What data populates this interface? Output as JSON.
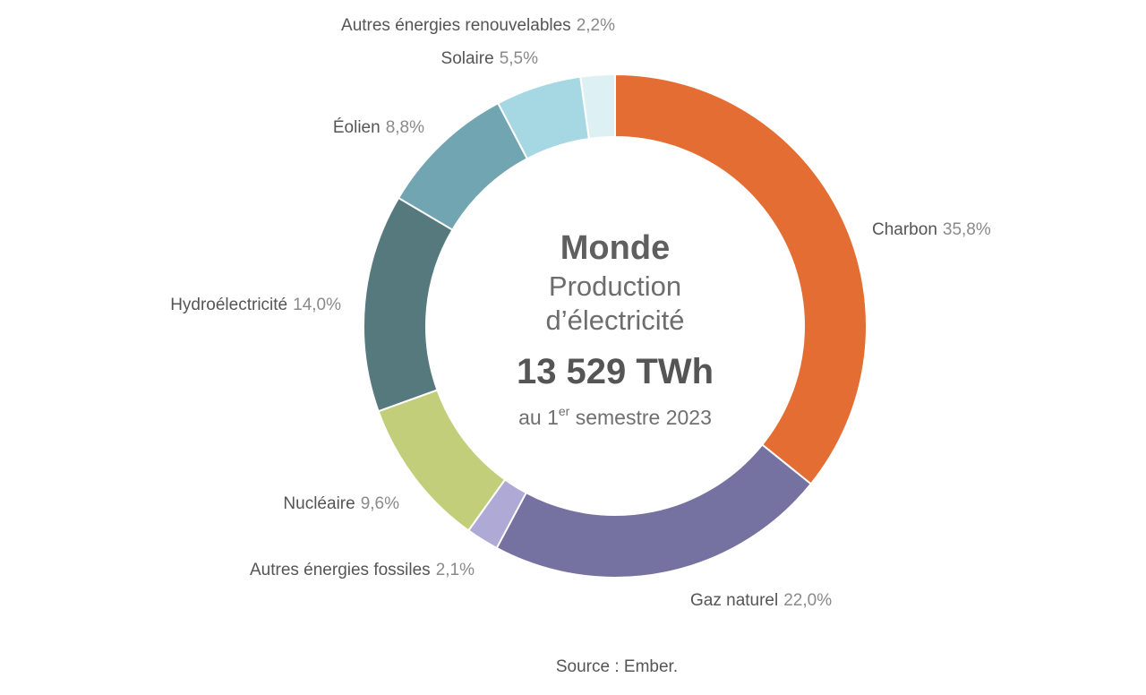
{
  "chart_data": {
    "type": "pie",
    "donut": true,
    "center": {
      "title": "Monde",
      "subtitle_line1": "Production",
      "subtitle_line2": "d’électricité",
      "total": "13 529 TWh",
      "period_prefix": "au 1",
      "period_superscript": "er",
      "period_suffix": " semestre 2023"
    },
    "slices": [
      {
        "name": "Charbon",
        "value": 35.8,
        "value_label": "35,8%",
        "color": "#E46D33"
      },
      {
        "name": "Gaz naturel",
        "value": 22.0,
        "value_label": "22,0%",
        "color": "#7571A0"
      },
      {
        "name": "Autres énergies fossiles",
        "value": 2.1,
        "value_label": "2,1%",
        "color": "#AFA9D6"
      },
      {
        "name": "Nucléaire",
        "value": 9.6,
        "value_label": "9,6%",
        "color": "#C2CE7A"
      },
      {
        "name": "Hydroélectricité",
        "value": 14.0,
        "value_label": "14,0%",
        "color": "#56797D"
      },
      {
        "name": "Éolien",
        "value": 8.8,
        "value_label": "8,8%",
        "color": "#71A5B1"
      },
      {
        "name": "Solaire",
        "value": 5.5,
        "value_label": "5,5%",
        "color": "#A6D8E4"
      },
      {
        "name": "Autres énergies renouvelables",
        "value": 2.2,
        "value_label": "2,2%",
        "color": "#DDF1F5"
      }
    ],
    "source": "Source :  Ember."
  }
}
